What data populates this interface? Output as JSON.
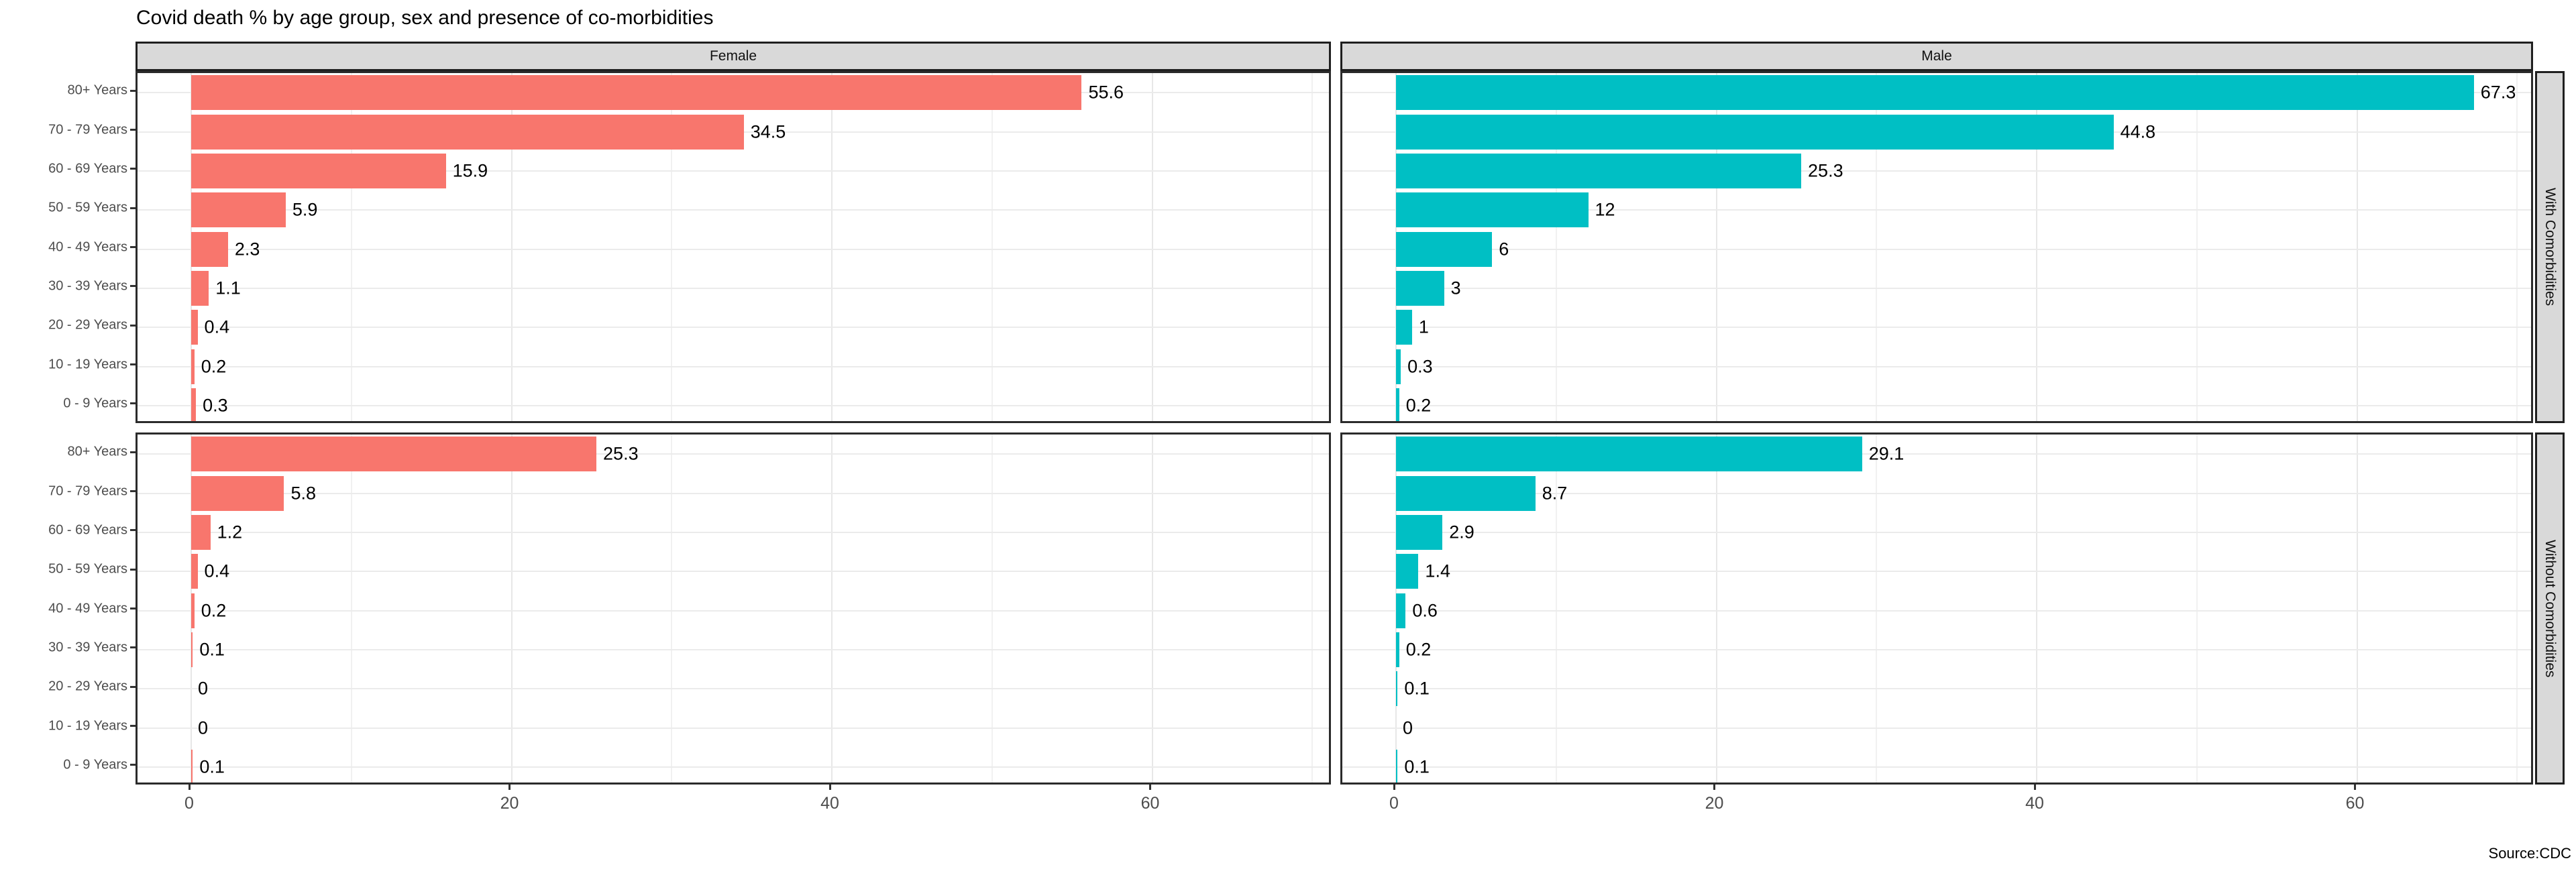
{
  "title": "Covid death % by age group, sex and presence of co-morbidities",
  "caption": "Source:CDC",
  "colors": {
    "female_bar": "#F8766D",
    "male_bar": "#00BFC4",
    "strip_background": "#D9D9D9",
    "panel_border": "#2B2B2B",
    "grid_major": "#E7E7E7",
    "grid_minor": "#F1F1F1",
    "axis_text": "#4D4D4D",
    "value_label": "#000000"
  },
  "chart_data": {
    "type": "bar",
    "orientation": "horizontal",
    "title": "Covid death % by age group, sex and presence of co-morbidities",
    "caption": "Source:CDC",
    "facet_columns": [
      "Female",
      "Male"
    ],
    "facet_rows": [
      "With Comorbidities",
      "Without Comorbidities"
    ],
    "categories": [
      "80+ Years",
      "70 - 79 Years",
      "60 - 69 Years",
      "50 - 59 Years",
      "40 - 49 Years",
      "30 - 39 Years",
      "20 - 29 Years",
      "10 - 19 Years",
      "0 - 9 Years"
    ],
    "x_ticks": [
      "0",
      "20",
      "40",
      "60"
    ],
    "x_tick_values": [
      0,
      20,
      40,
      60
    ],
    "xlim": [
      0,
      71.3
    ],
    "grid": "on",
    "legend": "none",
    "series": [
      {
        "facet_col": "Female",
        "facet_row": "With Comorbidities",
        "color": "#F8766D",
        "values": [
          55.6,
          34.5,
          15.9,
          5.9,
          2.3,
          1.1,
          0.4,
          0.2,
          0.3
        ],
        "labels": [
          "55.6",
          "34.5",
          "15.9",
          "5.9",
          "2.3",
          "1.1",
          "0.4",
          "0.2",
          "0.3"
        ]
      },
      {
        "facet_col": "Male",
        "facet_row": "With Comorbidities",
        "color": "#00BFC4",
        "values": [
          67.3,
          44.8,
          25.3,
          12,
          6,
          3,
          1,
          0.3,
          0.2
        ],
        "labels": [
          "67.3",
          "44.8",
          "25.3",
          "12",
          "6",
          "3",
          "1",
          "0.3",
          "0.2"
        ]
      },
      {
        "facet_col": "Female",
        "facet_row": "Without Comorbidities",
        "color": "#F8766D",
        "values": [
          25.3,
          5.8,
          1.2,
          0.4,
          0.2,
          0.1,
          0,
          0,
          0.1
        ],
        "labels": [
          "25.3",
          "5.8",
          "1.2",
          "0.4",
          "0.2",
          "0.1",
          "0",
          "0",
          "0.1"
        ]
      },
      {
        "facet_col": "Male",
        "facet_row": "Without Comorbidities",
        "color": "#00BFC4",
        "values": [
          29.1,
          8.7,
          2.9,
          1.4,
          0.6,
          0.2,
          0.1,
          0,
          0.1
        ],
        "labels": [
          "29.1",
          "8.7",
          "2.9",
          "1.4",
          "0.6",
          "0.2",
          "0.1",
          "0",
          "0.1"
        ]
      }
    ]
  }
}
